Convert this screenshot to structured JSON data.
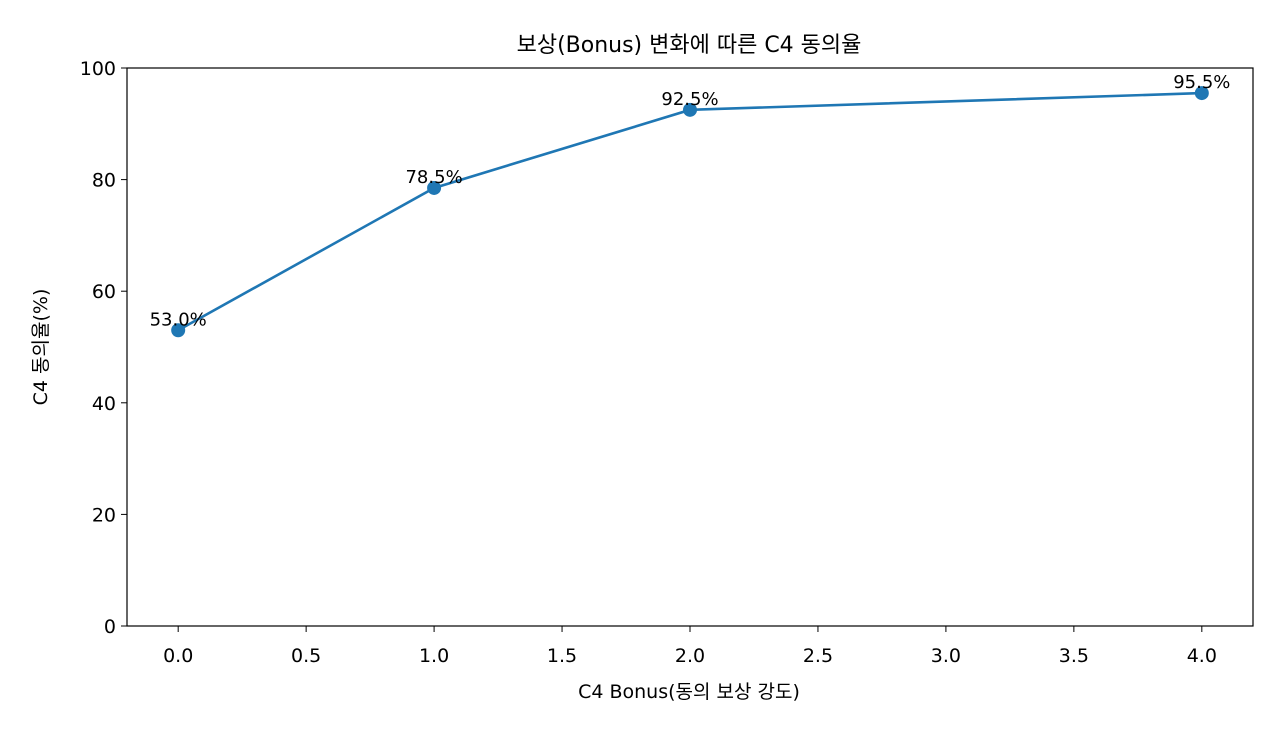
{
  "chart_data": {
    "type": "line",
    "title": "보상(Bonus) 변화에 따른 C4 동의율",
    "xlabel": "C4 Bonus(동의 보상 강도)",
    "ylabel": "C4 동의율(%)",
    "xlim": [
      -0.2,
      4.2
    ],
    "ylim": [
      0,
      100
    ],
    "x_ticks": [
      0.0,
      0.5,
      1.0,
      1.5,
      2.0,
      2.5,
      3.0,
      3.5,
      4.0
    ],
    "x_tick_labels": [
      "0.0",
      "0.5",
      "1.0",
      "1.5",
      "2.0",
      "2.5",
      "3.0",
      "3.5",
      "4.0"
    ],
    "y_ticks": [
      0,
      20,
      40,
      60,
      80,
      100
    ],
    "y_tick_labels": [
      "0",
      "20",
      "40",
      "60",
      "80",
      "100"
    ],
    "grid": false,
    "series": [
      {
        "color": "#1f77b4",
        "marker": "circle",
        "x": [
          0,
          1,
          2,
          4
        ],
        "y": [
          53.0,
          78.5,
          92.5,
          95.5
        ],
        "labels": [
          "53.0%",
          "78.5%",
          "92.5%",
          "95.5%"
        ]
      }
    ]
  }
}
